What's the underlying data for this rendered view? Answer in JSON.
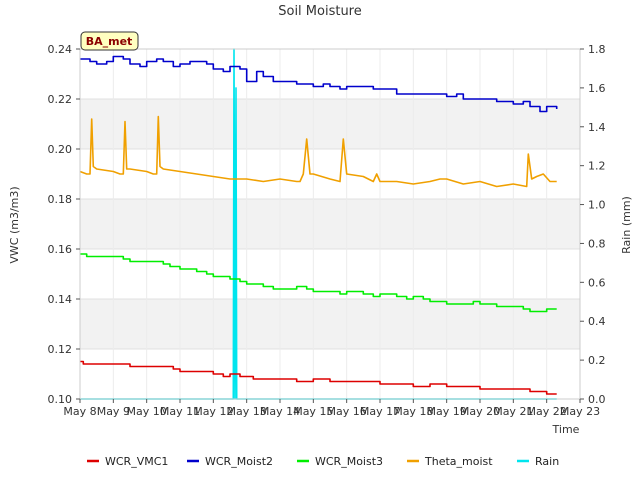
{
  "chart_data": {
    "type": "line",
    "title": "Soil Moisture",
    "station_label": "BA_met",
    "xlabel": "Time",
    "ylabel": "VWC (m3/m3)",
    "y2label": "Rain (mm)",
    "xlim": [
      8,
      23
    ],
    "ylim": [
      0.1,
      0.24
    ],
    "y2lim": [
      0.0,
      1.8
    ],
    "x_ticks": [
      {
        "value": 8,
        "label": "May 8"
      },
      {
        "value": 9,
        "label": "May 9"
      },
      {
        "value": 10,
        "label": "May 10"
      },
      {
        "value": 11,
        "label": "May 11"
      },
      {
        "value": 12,
        "label": "May 12"
      },
      {
        "value": 13,
        "label": "May 13"
      },
      {
        "value": 14,
        "label": "May 14"
      },
      {
        "value": 15,
        "label": "May 15"
      },
      {
        "value": 16,
        "label": "May 16"
      },
      {
        "value": 17,
        "label": "May 17"
      },
      {
        "value": 18,
        "label": "May 18"
      },
      {
        "value": 19,
        "label": "May 19"
      },
      {
        "value": 20,
        "label": "May 20"
      },
      {
        "value": 21,
        "label": "May 21"
      },
      {
        "value": 22,
        "label": "May 22"
      },
      {
        "value": 23,
        "label": "May 23"
      }
    ],
    "y_ticks": [
      {
        "value": 0.1,
        "label": "0.10"
      },
      {
        "value": 0.12,
        "label": "0.12"
      },
      {
        "value": 0.14,
        "label": "0.14"
      },
      {
        "value": 0.16,
        "label": "0.16"
      },
      {
        "value": 0.18,
        "label": "0.18"
      },
      {
        "value": 0.2,
        "label": "0.20"
      },
      {
        "value": 0.22,
        "label": "0.22"
      },
      {
        "value": 0.24,
        "label": "0.24"
      }
    ],
    "y2_ticks": [
      {
        "value": 0.0,
        "label": "0.0"
      },
      {
        "value": 0.2,
        "label": "0.2"
      },
      {
        "value": 0.4,
        "label": "0.4"
      },
      {
        "value": 0.6,
        "label": "0.6"
      },
      {
        "value": 0.8,
        "label": "0.8"
      },
      {
        "value": 1.0,
        "label": "1.0"
      },
      {
        "value": 1.2,
        "label": "1.2"
      },
      {
        "value": 1.4,
        "label": "1.4"
      },
      {
        "value": 1.6,
        "label": "1.6"
      },
      {
        "value": 1.8,
        "label": "1.8"
      }
    ],
    "grid": true,
    "background_bands": true,
    "legend_position": "bottom",
    "series": [
      {
        "name": "WCR_VMC1",
        "color": "#dd0000",
        "axis": "left",
        "step": true,
        "x": [
          8.0,
          8.1,
          8.2,
          9.0,
          9.5,
          10.0,
          10.5,
          10.8,
          11.0,
          11.5,
          12.0,
          12.3,
          12.5,
          12.8,
          13.2,
          13.5,
          14.0,
          14.5,
          15.0,
          15.5,
          16.0,
          16.5,
          17.0,
          17.5,
          18.0,
          18.5,
          19.0,
          19.5,
          20.0,
          20.5,
          21.0,
          21.5,
          22.0,
          22.3
        ],
        "y": [
          0.115,
          0.114,
          0.114,
          0.114,
          0.113,
          0.113,
          0.113,
          0.112,
          0.111,
          0.111,
          0.11,
          0.109,
          0.11,
          0.109,
          0.108,
          0.108,
          0.108,
          0.107,
          0.108,
          0.107,
          0.107,
          0.107,
          0.106,
          0.106,
          0.105,
          0.106,
          0.105,
          0.105,
          0.104,
          0.104,
          0.104,
          0.103,
          0.102,
          0.102
        ]
      },
      {
        "name": "WCR_Moist2",
        "color": "#0000cc",
        "axis": "left",
        "step": true,
        "x": [
          8.0,
          8.3,
          8.5,
          8.8,
          9.0,
          9.3,
          9.5,
          9.8,
          10.0,
          10.3,
          10.5,
          10.8,
          11.0,
          11.3,
          11.5,
          11.8,
          12.0,
          12.3,
          12.5,
          12.8,
          13.0,
          13.3,
          13.5,
          13.8,
          14.0,
          14.5,
          15.0,
          15.3,
          15.5,
          15.8,
          16.0,
          16.3,
          16.5,
          16.8,
          17.0,
          17.5,
          18.0,
          18.5,
          19.0,
          19.3,
          19.5,
          20.0,
          20.5,
          21.0,
          21.3,
          21.5,
          21.8,
          22.0,
          22.3
        ],
        "y": [
          0.236,
          0.235,
          0.234,
          0.235,
          0.237,
          0.236,
          0.234,
          0.233,
          0.235,
          0.236,
          0.235,
          0.233,
          0.234,
          0.235,
          0.235,
          0.234,
          0.232,
          0.231,
          0.233,
          0.232,
          0.227,
          0.231,
          0.229,
          0.227,
          0.227,
          0.226,
          0.225,
          0.226,
          0.225,
          0.224,
          0.225,
          0.225,
          0.225,
          0.224,
          0.224,
          0.222,
          0.222,
          0.222,
          0.221,
          0.222,
          0.22,
          0.22,
          0.219,
          0.218,
          0.219,
          0.217,
          0.215,
          0.217,
          0.216
        ]
      },
      {
        "name": "WCR_Moist3",
        "color": "#00ee00",
        "axis": "left",
        "step": true,
        "x": [
          8.0,
          8.2,
          8.5,
          9.0,
          9.3,
          9.5,
          10.0,
          10.5,
          10.7,
          11.0,
          11.5,
          11.8,
          12.0,
          12.5,
          12.8,
          13.0,
          13.5,
          13.8,
          14.0,
          14.5,
          14.8,
          15.0,
          15.5,
          15.8,
          16.0,
          16.5,
          16.8,
          17.0,
          17.5,
          17.8,
          18.0,
          18.3,
          18.5,
          19.0,
          19.5,
          19.8,
          20.0,
          20.5,
          21.0,
          21.3,
          21.5,
          21.8,
          22.0,
          22.3
        ],
        "y": [
          0.158,
          0.157,
          0.157,
          0.157,
          0.156,
          0.155,
          0.155,
          0.154,
          0.153,
          0.152,
          0.151,
          0.15,
          0.149,
          0.148,
          0.147,
          0.146,
          0.145,
          0.144,
          0.144,
          0.145,
          0.144,
          0.143,
          0.143,
          0.142,
          0.143,
          0.142,
          0.141,
          0.142,
          0.141,
          0.14,
          0.141,
          0.14,
          0.139,
          0.138,
          0.138,
          0.139,
          0.138,
          0.137,
          0.137,
          0.136,
          0.135,
          0.135,
          0.136,
          0.136
        ]
      },
      {
        "name": "Theta_moist",
        "color": "#f0a000",
        "axis": "left",
        "step": false,
        "x": [
          8.0,
          8.2,
          8.3,
          8.35,
          8.4,
          8.5,
          9.0,
          9.2,
          9.3,
          9.35,
          9.4,
          9.5,
          10.0,
          10.2,
          10.3,
          10.35,
          10.4,
          10.5,
          11.0,
          11.5,
          12.0,
          12.5,
          13.0,
          13.5,
          14.0,
          14.5,
          14.6,
          14.7,
          14.8,
          14.9,
          15.0,
          15.5,
          15.8,
          15.9,
          16.0,
          16.5,
          16.8,
          16.9,
          17.0,
          17.5,
          18.0,
          18.5,
          18.8,
          19.0,
          19.5,
          20.0,
          20.5,
          21.0,
          21.4,
          21.45,
          21.55,
          21.7,
          21.9,
          22.1,
          22.3
        ],
        "y": [
          0.191,
          0.19,
          0.19,
          0.212,
          0.193,
          0.192,
          0.191,
          0.19,
          0.19,
          0.211,
          0.192,
          0.192,
          0.191,
          0.19,
          0.19,
          0.213,
          0.193,
          0.192,
          0.191,
          0.19,
          0.189,
          0.188,
          0.188,
          0.187,
          0.188,
          0.187,
          0.187,
          0.19,
          0.204,
          0.19,
          0.19,
          0.188,
          0.187,
          0.204,
          0.19,
          0.189,
          0.187,
          0.19,
          0.187,
          0.187,
          0.186,
          0.187,
          0.188,
          0.188,
          0.186,
          0.187,
          0.185,
          0.186,
          0.185,
          0.198,
          0.188,
          0.189,
          0.19,
          0.187,
          0.187
        ]
      },
      {
        "name": "Rain",
        "color": "#00e5ee",
        "axis": "right",
        "step": false,
        "x": [
          8.0,
          12.6,
          12.62,
          12.65,
          12.68,
          12.7,
          22.3
        ],
        "y": [
          0.0,
          0.0,
          1.8,
          0.0,
          1.6,
          0.0,
          0.0
        ]
      }
    ]
  }
}
